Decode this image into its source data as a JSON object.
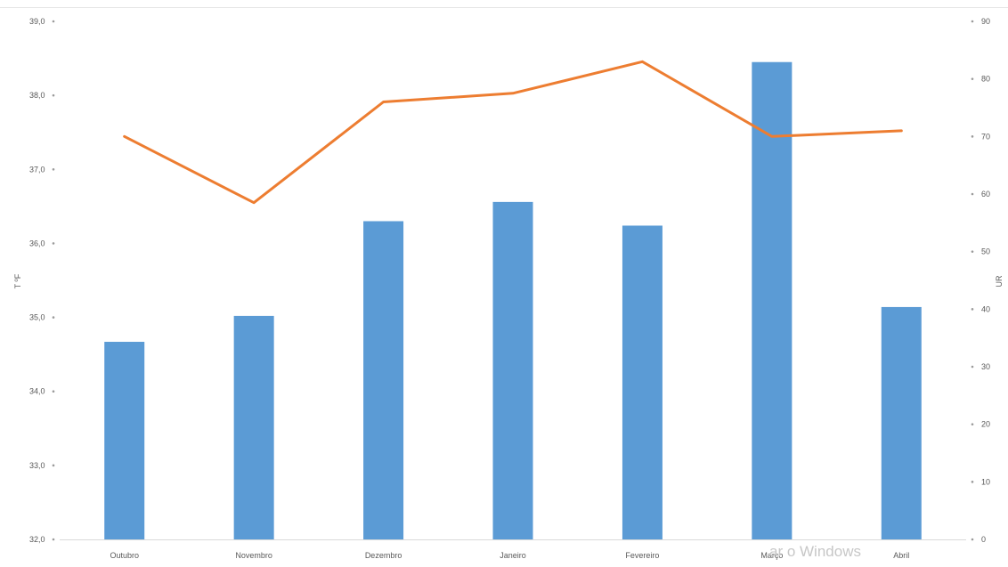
{
  "chart_data": {
    "type": "bar",
    "categories": [
      "Outubro",
      "Novembro",
      "Dezembro",
      "Janeiro",
      "Fevereiro",
      "Março",
      "Abril"
    ],
    "series": [
      {
        "type": "bar",
        "axis": "left",
        "color": "#5b9bd5",
        "values": [
          34.67,
          35.02,
          36.3,
          36.56,
          36.24,
          38.45,
          35.14
        ]
      },
      {
        "type": "line",
        "axis": "right",
        "color": "#ed7d31",
        "values": [
          70,
          58.5,
          76,
          77.5,
          83,
          70,
          71
        ]
      }
    ],
    "y_left": {
      "label": "T ºF",
      "ylim": [
        32,
        39
      ],
      "ticks": [
        "32,0",
        "33,0",
        "34,0",
        "35,0",
        "36,0",
        "37,0",
        "38,0",
        "39,0"
      ]
    },
    "y_right": {
      "label": "UR",
      "ylim": [
        0,
        90
      ],
      "ticks": [
        "0",
        "10",
        "20",
        "30",
        "40",
        "50",
        "60",
        "70",
        "80",
        "90"
      ]
    },
    "grid": false,
    "legend": "none"
  },
  "watermark": {
    "text": "ar o Windows"
  }
}
